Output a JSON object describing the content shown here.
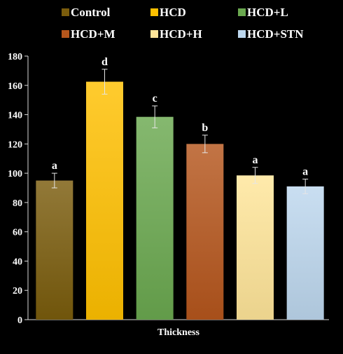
{
  "chart_data": {
    "type": "bar",
    "categories": [
      "Thickness"
    ],
    "xlabel": "Thickness",
    "ylabel": "",
    "ylim": [
      0,
      180
    ],
    "yticks": [
      0,
      20,
      40,
      60,
      80,
      100,
      120,
      140,
      160,
      180
    ],
    "grid": false,
    "legend_position": "top",
    "series": [
      {
        "name": "Control",
        "values": [
          95
        ],
        "error": [
          5
        ],
        "label": "a",
        "color": "#7a5c0c"
      },
      {
        "name": "HCD",
        "values": [
          162.5
        ],
        "error": [
          8.5
        ],
        "label": "d",
        "color": "#ffc000"
      },
      {
        "name": "HCD+L",
        "values": [
          138.5
        ],
        "error": [
          7.5
        ],
        "label": "c",
        "color": "#6aa84f"
      },
      {
        "name": "HCD+M",
        "values": [
          120
        ],
        "error": [
          6
        ],
        "label": "b",
        "color": "#b5561c"
      },
      {
        "name": "HCD+H",
        "values": [
          98.5
        ],
        "error": [
          5.5
        ],
        "label": "a",
        "color": "#ffe599"
      },
      {
        "name": "HCD+STN",
        "values": [
          91
        ],
        "error": [
          5
        ],
        "label": "a",
        "color": "#bdd7ee"
      }
    ]
  }
}
